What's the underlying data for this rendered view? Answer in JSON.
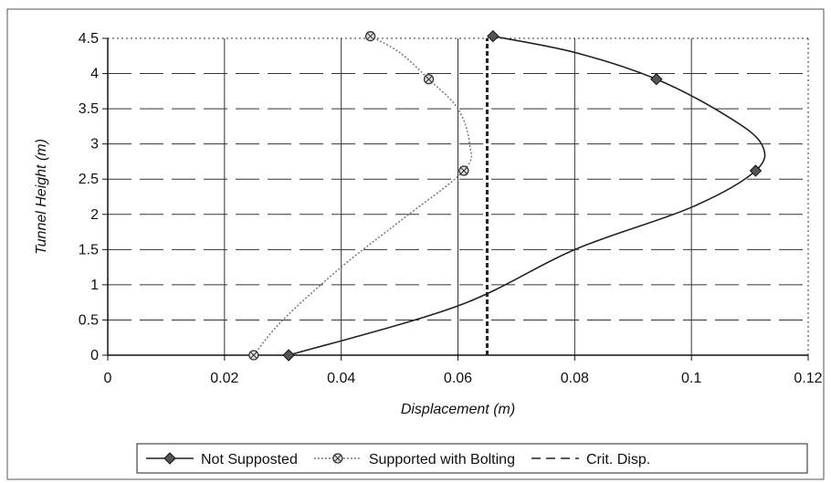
{
  "chart_data": {
    "type": "line",
    "title": "",
    "xlabel": "Displacement (m)",
    "ylabel": "Tunnel Height (m)",
    "xlim": [
      0,
      0.12
    ],
    "ylim": [
      0,
      4.5
    ],
    "xticks": [
      "0",
      "0.02",
      "0.04",
      "0.06",
      "0.08",
      "0.1",
      "0.12"
    ],
    "yticks": [
      "0",
      "0.5",
      "1",
      "1.5",
      "2",
      "2.5",
      "3",
      "3.5",
      "4",
      "4.5"
    ],
    "grid": "horizontal dashed, vertical at major ticks",
    "legend_position": "bottom",
    "series": [
      {
        "name": "Not Supposted",
        "marker": "diamond",
        "color": "#222222",
        "line_style": "solid",
        "points": [
          [
            0.031,
            0
          ],
          [
            0.111,
            2.62
          ],
          [
            0.094,
            3.92
          ],
          [
            0.066,
            4.53
          ]
        ],
        "curve": [
          [
            0.031,
            0
          ],
          [
            0.06,
            0.7
          ],
          [
            0.08,
            1.5
          ],
          [
            0.1,
            2.1
          ],
          [
            0.111,
            2.62
          ],
          [
            0.112,
            3.0
          ],
          [
            0.106,
            3.4
          ],
          [
            0.094,
            3.92
          ],
          [
            0.08,
            4.3
          ],
          [
            0.066,
            4.53
          ]
        ]
      },
      {
        "name": "Supported with Bolting",
        "marker": "crossed-circle",
        "color": "#777777",
        "line_style": "dotted",
        "points": [
          [
            0.025,
            0
          ],
          [
            0.061,
            2.62
          ],
          [
            0.055,
            3.92
          ],
          [
            0.045,
            4.53
          ]
        ],
        "curve": [
          [
            0.025,
            0
          ],
          [
            0.03,
            0.5
          ],
          [
            0.04,
            1.25
          ],
          [
            0.05,
            1.9
          ],
          [
            0.061,
            2.62
          ],
          [
            0.062,
            3.0
          ],
          [
            0.06,
            3.5
          ],
          [
            0.055,
            3.92
          ],
          [
            0.05,
            4.3
          ],
          [
            0.045,
            4.53
          ]
        ]
      },
      {
        "name": "Crit. Disp.",
        "marker": "none",
        "color": "#222222",
        "line_style": "dashed-thick",
        "points": [
          [
            0.065,
            0
          ],
          [
            0.065,
            4.5
          ]
        ]
      }
    ]
  }
}
